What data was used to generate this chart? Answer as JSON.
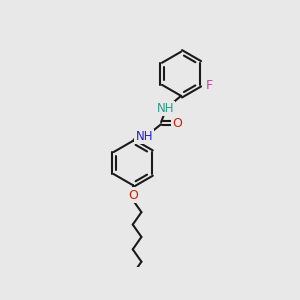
{
  "background_color": "#e8e8e8",
  "bond_color": "#1a1a1a",
  "nitrogen1_color": "#2a9a8a",
  "nitrogen2_color": "#2020cc",
  "oxygen_color": "#cc2200",
  "fluorine_color": "#cc44aa",
  "bond_width": 1.5,
  "figsize": [
    3.0,
    3.0
  ],
  "dpi": 100,
  "xlim": [
    0,
    10
  ],
  "ylim": [
    -1,
    10
  ]
}
